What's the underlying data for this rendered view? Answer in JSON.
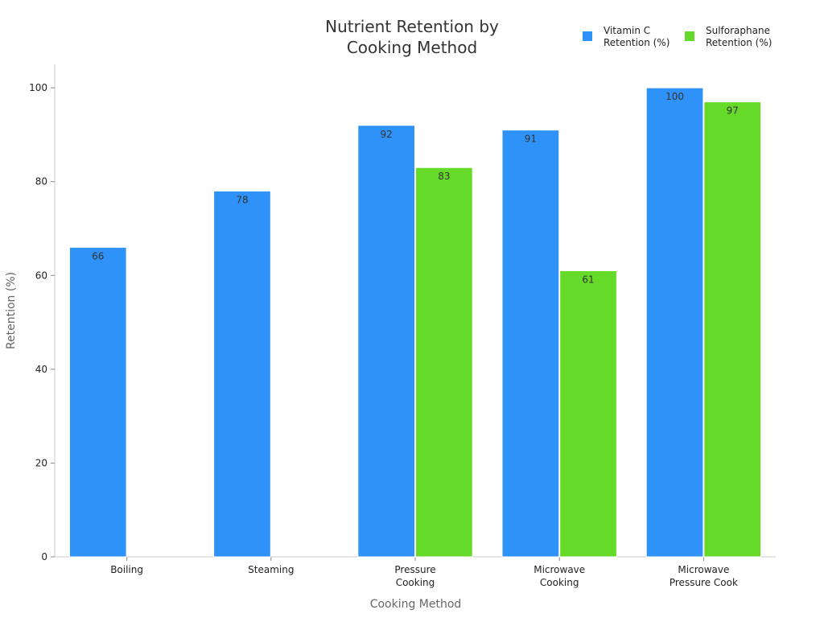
{
  "chart_data": {
    "type": "bar",
    "title_lines": [
      "Nutrient Retention by",
      "Cooking Method"
    ],
    "xlabel": "Cooking Method",
    "ylabel": "Retention (%)",
    "ylim": [
      0,
      105
    ],
    "yticks": [
      0,
      20,
      40,
      60,
      80,
      100
    ],
    "grid": false,
    "legend_position": "top-right",
    "categories": [
      [
        "Boiling"
      ],
      [
        "Steaming"
      ],
      [
        "Pressure",
        "Cooking"
      ],
      [
        "Microwave",
        "Cooking"
      ],
      [
        "Microwave",
        "Pressure Cook"
      ]
    ],
    "series": [
      {
        "name_lines": [
          "Vitamin C",
          "Retention (%)"
        ],
        "color": "#2f92f8",
        "values": [
          66,
          78,
          92,
          91,
          100
        ]
      },
      {
        "name_lines": [
          "Sulforaphane",
          "Retention (%)"
        ],
        "color": "#66da28",
        "values": [
          null,
          null,
          83,
          61,
          97
        ]
      }
    ]
  }
}
